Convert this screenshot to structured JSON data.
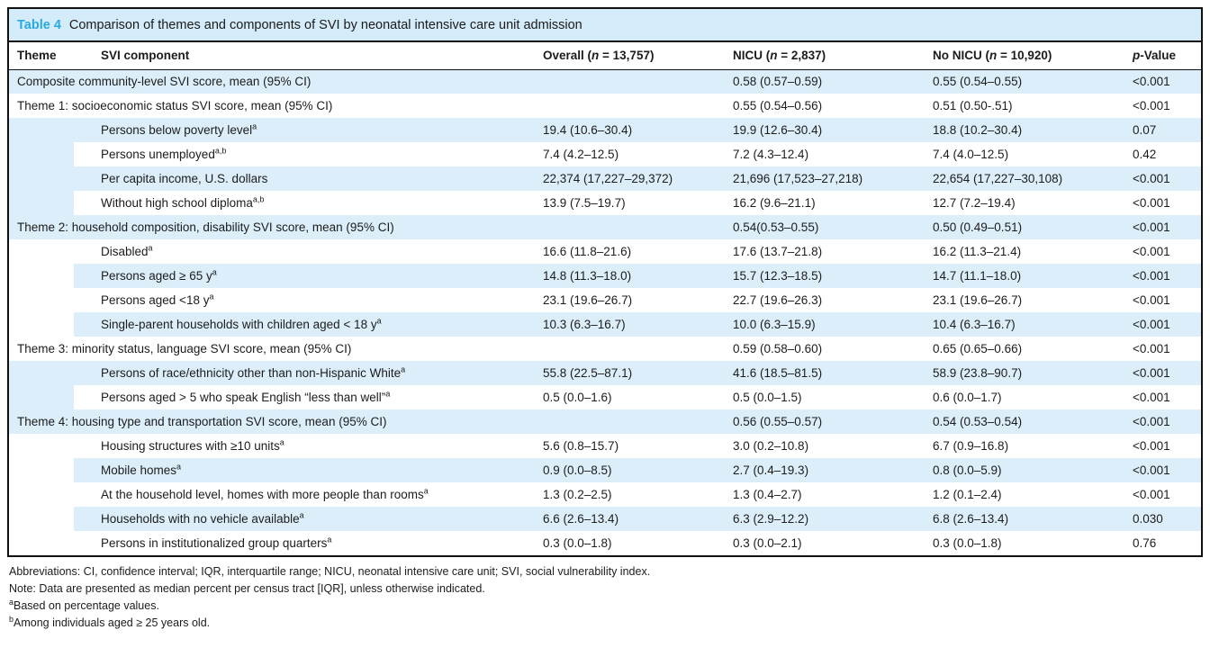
{
  "colors": {
    "accent": "#29a9e0",
    "title_bg": "#d4ebf9",
    "row_shade": "#dceefa",
    "border": "#101010"
  },
  "title": {
    "tag": "Table 4",
    "text": "Comparison of themes and components of SVI by neonatal intensive care unit admission"
  },
  "columns": [
    {
      "label": "Theme"
    },
    {
      "label": "SVI component"
    },
    {
      "pre": "Overall (",
      "it": "n",
      "post": " = 13,757)"
    },
    {
      "pre": "NICU (",
      "it": "n",
      "post": " = 2,837)"
    },
    {
      "pre": "No NICU (",
      "it": "n",
      "post": " = 10,920)"
    },
    {
      "pre": "",
      "it": "p",
      "post": "-Value"
    }
  ],
  "table": {
    "rows": [
      {
        "kind": "theme",
        "shaded": true,
        "label": "Composite community-level SVI score, mean (95% CI)",
        "sup": "",
        "overall": "",
        "nicu": "0.58 (0.57–0.59)",
        "nonicu": "0.55 (0.54–0.55)",
        "p": "<0.001"
      },
      {
        "kind": "theme",
        "shaded": false,
        "label": "Theme 1: socioeconomic status SVI score, mean (95% CI)",
        "sup": "",
        "overall": "",
        "nicu": "0.55 (0.54–0.56)",
        "nonicu": "0.51 (0.50-.51)",
        "p": "<0.001"
      },
      {
        "kind": "component",
        "shaded": true,
        "group_rows": 4,
        "group_shaded": true,
        "label": "Persons below poverty level",
        "sup": "a",
        "overall": "19.4 (10.6–30.4)",
        "nicu": "19.9 (12.6–30.4)",
        "nonicu": "18.8 (10.2–30.4)",
        "p": "0.07"
      },
      {
        "kind": "component",
        "shaded": false,
        "label": "Persons unemployed",
        "sup": "a,b",
        "overall": "7.4 (4.2–12.5)",
        "nicu": "7.2 (4.3–12.4)",
        "nonicu": "7.4 (4.0–12.5)",
        "p": "0.42"
      },
      {
        "kind": "component",
        "shaded": true,
        "label": "Per capita income, U.S. dollars",
        "sup": "",
        "overall": "22,374 (17,227–29,372)",
        "nicu": "21,696 (17,523–27,218)",
        "nonicu": "22,654 (17,227–30,108)",
        "p": "<0.001"
      },
      {
        "kind": "component",
        "shaded": false,
        "label": "Without high school diploma",
        "sup": "a,b",
        "overall": "13.9 (7.5–19.7)",
        "nicu": "16.2 (9.6–21.1)",
        "nonicu": "12.7 (7.2–19.4)",
        "p": "<0.001"
      },
      {
        "kind": "theme",
        "shaded": true,
        "label": "Theme 2: household composition, disability SVI score, mean (95% CI)",
        "sup": "",
        "overall": "",
        "nicu": "0.54(0.53–0.55)",
        "nonicu": "0.50 (0.49–0.51)",
        "p": "<0.001"
      },
      {
        "kind": "component",
        "shaded": false,
        "group_rows": 4,
        "group_shaded": false,
        "label": "Disabled",
        "sup": "a",
        "overall": "16.6 (11.8–21.6)",
        "nicu": "17.6 (13.7–21.8)",
        "nonicu": "16.2 (11.3–21.4)",
        "p": "<0.001"
      },
      {
        "kind": "component",
        "shaded": true,
        "label": "Persons aged ≥ 65 y",
        "sup": "a",
        "overall": "14.8 (11.3–18.0)",
        "nicu": "15.7 (12.3–18.5)",
        "nonicu": "14.7 (11.1–18.0)",
        "p": "<0.001"
      },
      {
        "kind": "component",
        "shaded": false,
        "label": "Persons aged <18 y",
        "sup": "a",
        "overall": "23.1 (19.6–26.7)",
        "nicu": "22.7 (19.6–26.3)",
        "nonicu": "23.1 (19.6–26.7)",
        "p": "<0.001"
      },
      {
        "kind": "component",
        "shaded": true,
        "label": "Single-parent households with children aged < 18 y",
        "sup": "a",
        "overall": "10.3 (6.3–16.7)",
        "nicu": "10.0 (6.3–15.9)",
        "nonicu": "10.4 (6.3–16.7)",
        "p": "<0.001"
      },
      {
        "kind": "theme",
        "shaded": false,
        "label": "Theme 3: minority status, language SVI score, mean (95% CI)",
        "sup": "",
        "overall": "",
        "nicu": "0.59 (0.58–0.60)",
        "nonicu": "0.65 (0.65–0.66)",
        "p": "<0.001"
      },
      {
        "kind": "component",
        "shaded": true,
        "group_rows": 2,
        "group_shaded": true,
        "label": "Persons of race/ethnicity other than non-Hispanic White",
        "sup": "a",
        "overall": "55.8 (22.5–87.1)",
        "nicu": "41.6 (18.5–81.5)",
        "nonicu": "58.9 (23.8–90.7)",
        "p": "<0.001"
      },
      {
        "kind": "component",
        "shaded": false,
        "label": "Persons aged > 5 who speak English “less than well”",
        "sup": "a",
        "overall": "0.5 (0.0–1.6)",
        "nicu": "0.5 (0.0–1.5)",
        "nonicu": "0.6 (0.0–1.7)",
        "p": "<0.001"
      },
      {
        "kind": "theme",
        "shaded": true,
        "label": "Theme 4: housing type and transportation SVI score, mean (95% CI)",
        "sup": "",
        "overall": "",
        "nicu": "0.56 (0.55–0.57)",
        "nonicu": "0.54 (0.53–0.54)",
        "p": "<0.001"
      },
      {
        "kind": "component",
        "shaded": false,
        "group_rows": 5,
        "group_shaded": false,
        "label": "Housing structures with ≥10 units",
        "sup": "a",
        "overall": "5.6 (0.8–15.7)",
        "nicu": "3.0 (0.2–10.8)",
        "nonicu": "6.7 (0.9–16.8)",
        "p": "<0.001"
      },
      {
        "kind": "component",
        "shaded": true,
        "label": "Mobile homes",
        "sup": "a",
        "overall": "0.9 (0.0–8.5)",
        "nicu": "2.7 (0.4–19.3)",
        "nonicu": "0.8 (0.0–5.9)",
        "p": "<0.001"
      },
      {
        "kind": "component",
        "shaded": false,
        "label": "At the household level, homes with more people than rooms",
        "sup": "a",
        "overall": "1.3 (0.2–2.5)",
        "nicu": "1.3 (0.4–2.7)",
        "nonicu": "1.2 (0.1–2.4)",
        "p": "<0.001"
      },
      {
        "kind": "component",
        "shaded": true,
        "label": "Households with no vehicle available",
        "sup": "a",
        "overall": "6.6 (2.6–13.4)",
        "nicu": "6.3 (2.9–12.2)",
        "nonicu": "6.8 (2.6–13.4)",
        "p": "0.030"
      },
      {
        "kind": "component",
        "shaded": false,
        "label": "Persons in institutionalized group quarters",
        "sup": "a",
        "overall": "0.3 (0.0–1.8)",
        "nicu": "0.3 (0.0–2.1)",
        "nonicu": "0.3 (0.0–1.8)",
        "p": "0.76"
      }
    ]
  },
  "footnotes": [
    {
      "sup": "",
      "text": "Abbreviations: CI, confidence interval; IQR, interquartile range; NICU, neonatal intensive care unit; SVI, social vulnerability index."
    },
    {
      "sup": "",
      "text": "Note: Data are presented as median percent per census tract [IQR], unless otherwise indicated."
    },
    {
      "sup": "a",
      "text": "Based on percentage values."
    },
    {
      "sup": "b",
      "text": "Among individuals aged ≥ 25 years old."
    }
  ]
}
